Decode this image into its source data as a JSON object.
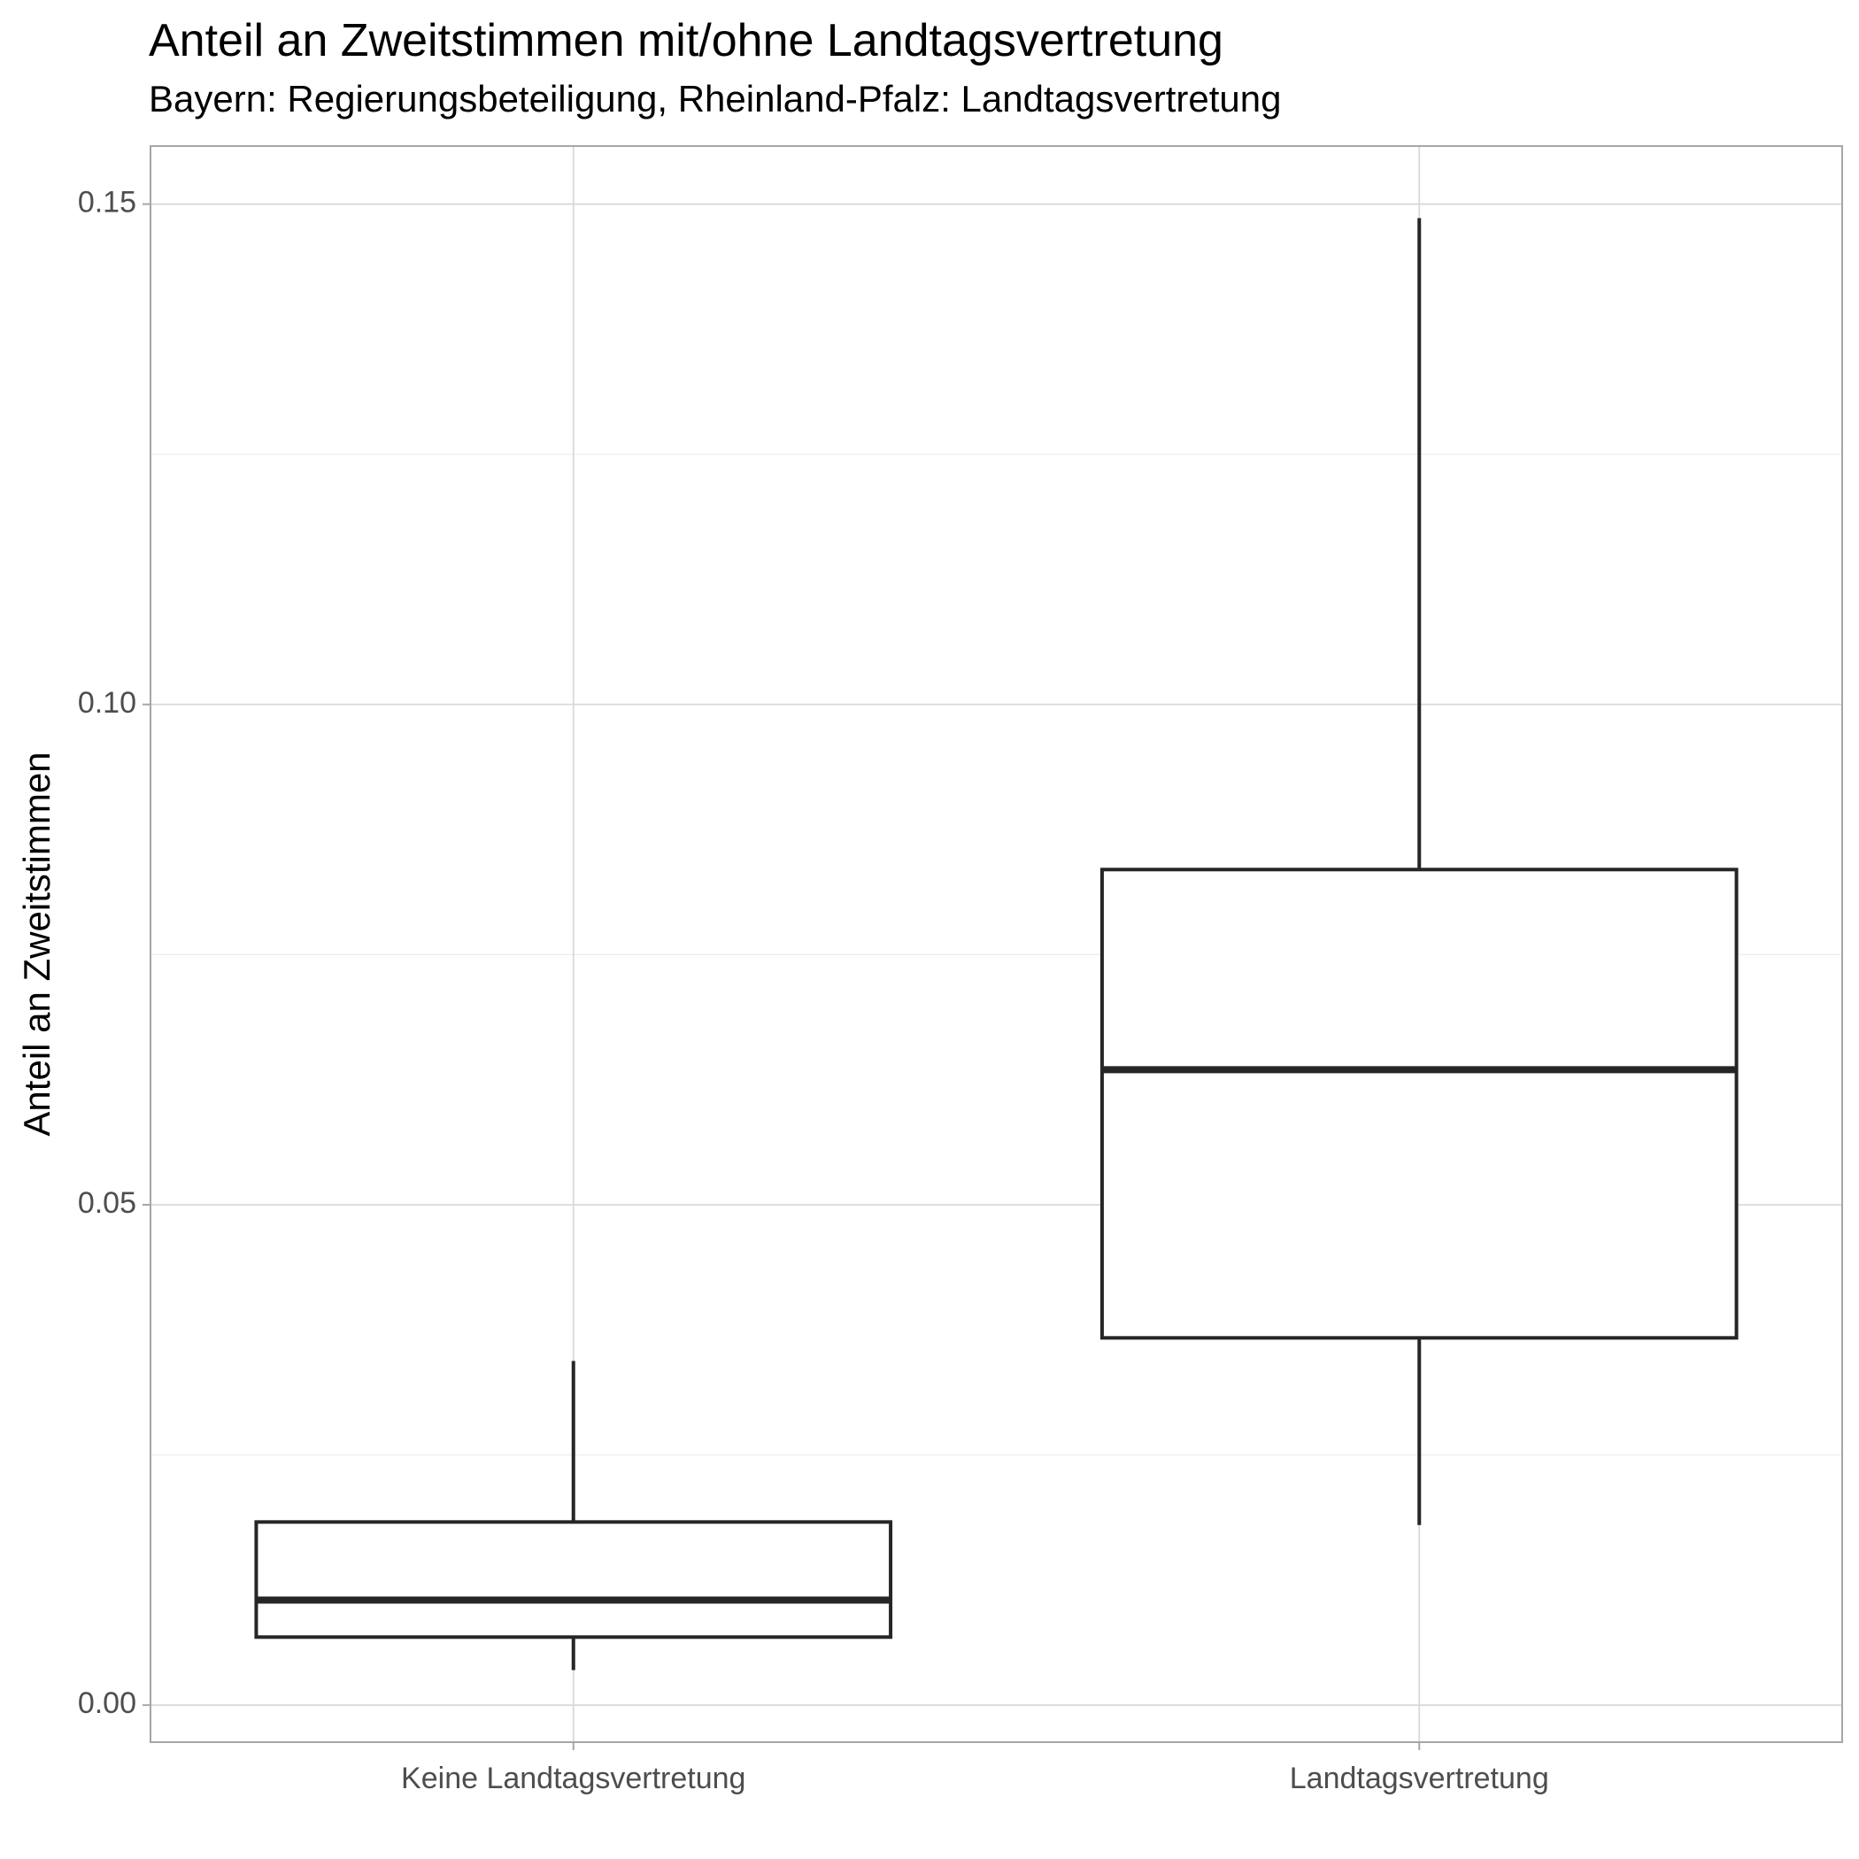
{
  "chart_data": {
    "type": "box",
    "title": "Anteil an Zweitstimmen mit/ohne Landtagsvertretung",
    "subtitle": "Bayern: Regierungsbeteiligung, Rheinland-Pfalz: Landtagsvertretung",
    "xlabel": "",
    "ylabel": "Anteil an Zweitstimmen",
    "ylim": [
      -0.0037,
      0.1558
    ],
    "yticks": [
      0.0,
      0.05,
      0.1,
      0.15
    ],
    "ytick_labels": [
      "0.00",
      "0.05",
      "0.10",
      "0.15"
    ],
    "grid": true,
    "categories": [
      "Keine Landtagsvertretung",
      "Landtagsvertretung"
    ],
    "boxes": [
      {
        "category": "Keine Landtagsvertretung",
        "whisker_low": 0.0035,
        "q1": 0.0068,
        "median": 0.0105,
        "q3": 0.0183,
        "whisker_high": 0.0344
      },
      {
        "category": "Landtagsvertretung",
        "whisker_low": 0.018,
        "q1": 0.0367,
        "median": 0.0635,
        "q3": 0.0835,
        "whisker_high": 0.1486
      }
    ]
  },
  "colors": {
    "box_stroke": "#262626",
    "grid_major": "#d9d9d9",
    "grid_minor": "#ebebeb",
    "panel_border": "#a6a6a6",
    "tick_label": "#4d4d4d",
    "text": "#000000"
  }
}
